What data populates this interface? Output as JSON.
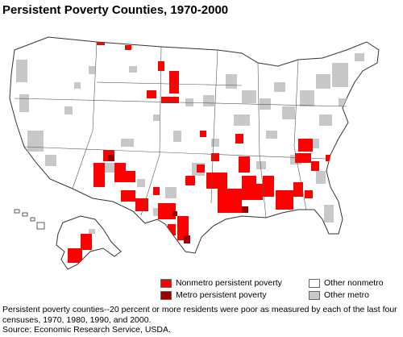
{
  "title": "Persistent Poverty Counties, 1970-2000",
  "legend": {
    "nonmetro_persistent": {
      "label": "Nonmetro persistent poverty",
      "color": "#ff0000"
    },
    "metro_persistent": {
      "label": "Metro persistent poverty",
      "color": "#990000"
    },
    "other_nonmetro": {
      "label": "Other nonmetro",
      "color": "#ffffff"
    },
    "other_metro": {
      "label": "Other metro",
      "color": "#c8c8c8"
    }
  },
  "footnote": "Persistent poverty counties--20 percent or more residents were poor as measured by each of the last four censuses, 1970, 1980, 1990, and 2000.",
  "source": "Source: Economic Research Service, USDA."
}
